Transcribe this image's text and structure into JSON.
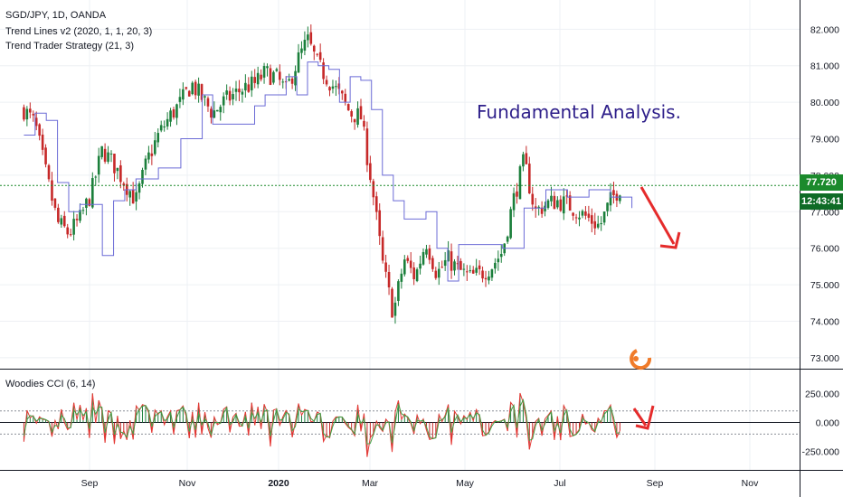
{
  "header": {
    "symbol_line": "SGD/JPY, 1D, OANDA",
    "indicator1": "Trend Lines v2 (2020, 1, 1, 20, 3)",
    "indicator2": "Trend Trader Strategy (21, 3)",
    "oscillator_label": "Woodies CCI (6, 14)"
  },
  "annotation": {
    "text": "Fundamental Analysis."
  },
  "price_tags": {
    "last_price": "77.720",
    "countdown": "12:43:41"
  },
  "colors": {
    "up": "#26a69a",
    "up_dark": "#1b7f3b",
    "down": "#ef5350",
    "down_dark": "#b71c1c",
    "trend": "#6b6bd6",
    "last_line": "#1b8a2c",
    "arrow": "#e52b2b",
    "annot": "#2e1f8a"
  },
  "chart_data": [
    {
      "type": "candlestick",
      "title": "SGD/JPY, 1D, OANDA",
      "y_axis": {
        "ylim": [
          72.7,
          82.8
        ],
        "ticks": [
          "82.000",
          "81.000",
          "80.000",
          "79.000",
          "78.000",
          "77.000",
          "76.000",
          "75.000",
          "74.000",
          "73.000"
        ]
      },
      "x_axis": {
        "tick_labels": [
          "Sep",
          "Nov",
          "2020",
          "Mar",
          "May",
          "Jul",
          "Sep",
          "Nov"
        ]
      },
      "close_path": [
        [
          "2019-07-22",
          79.8
        ],
        [
          "2019-07-29",
          79.4
        ],
        [
          "2019-08-05",
          78.0
        ],
        [
          "2019-08-12",
          76.7
        ],
        [
          "2019-08-19",
          76.4
        ],
        [
          "2019-08-26",
          76.8
        ],
        [
          "2019-09-02",
          77.5
        ],
        [
          "2019-09-09",
          78.7
        ],
        [
          "2019-09-16",
          78.3
        ],
        [
          "2019-09-23",
          77.8
        ],
        [
          "2019-09-30",
          77.3
        ],
        [
          "2019-10-07",
          78.4
        ],
        [
          "2019-10-14",
          79.1
        ],
        [
          "2019-10-21",
          79.6
        ],
        [
          "2019-10-28",
          80.0
        ],
        [
          "2019-11-04",
          80.5
        ],
        [
          "2019-11-11",
          80.1
        ],
        [
          "2019-11-18",
          79.7
        ],
        [
          "2019-11-25",
          80.0
        ],
        [
          "2019-12-02",
          80.2
        ],
        [
          "2019-12-09",
          80.4
        ],
        [
          "2019-12-16",
          80.5
        ],
        [
          "2019-12-23",
          80.8
        ],
        [
          "2019-12-30",
          80.7
        ],
        [
          "2020-01-06",
          80.3
        ],
        [
          "2020-01-13",
          81.1
        ],
        [
          "2020-01-20",
          81.7
        ],
        [
          "2020-01-27",
          81.0
        ],
        [
          "2020-02-03",
          80.6
        ],
        [
          "2020-02-10",
          80.2
        ],
        [
          "2020-02-17",
          79.7
        ],
        [
          "2020-02-24",
          79.6
        ],
        [
          "2020-03-02",
          77.8
        ],
        [
          "2020-03-09",
          75.6
        ],
        [
          "2020-03-16",
          74.2
        ],
        [
          "2020-03-23",
          75.7
        ],
        [
          "2020-03-30",
          75.2
        ],
        [
          "2020-04-06",
          76.2
        ],
        [
          "2020-04-13",
          75.3
        ],
        [
          "2020-04-20",
          75.7
        ],
        [
          "2020-04-27",
          75.4
        ],
        [
          "2020-05-04",
          75.2
        ],
        [
          "2020-05-11",
          75.3
        ],
        [
          "2020-05-18",
          75.5
        ],
        [
          "2020-05-25",
          75.9
        ],
        [
          "2020-06-01",
          77.3
        ],
        [
          "2020-06-08",
          78.4
        ],
        [
          "2020-06-15",
          77.0
        ],
        [
          "2020-06-22",
          77.2
        ],
        [
          "2020-06-29",
          77.3
        ],
        [
          "2020-07-06",
          77.2
        ],
        [
          "2020-07-13",
          77.0
        ],
        [
          "2020-07-20",
          76.8
        ],
        [
          "2020-07-27",
          76.6
        ],
        [
          "2020-08-03",
          77.3
        ],
        [
          "2020-08-10",
          77.72
        ]
      ],
      "trend_line_path": [
        [
          "2019-07-22",
          79.1
        ],
        [
          "2019-07-29",
          79.7
        ],
        [
          "2019-08-05",
          79.5
        ],
        [
          "2019-08-12",
          77.8
        ],
        [
          "2019-08-19",
          77.0
        ],
        [
          "2019-08-26",
          77.2
        ],
        [
          "2019-09-09",
          75.8
        ],
        [
          "2019-09-16",
          77.3
        ],
        [
          "2019-09-23",
          77.6
        ],
        [
          "2019-09-30",
          77.9
        ],
        [
          "2019-10-14",
          78.2
        ],
        [
          "2019-10-28",
          79.0
        ],
        [
          "2019-11-11",
          80.2
        ],
        [
          "2019-11-18",
          79.4
        ],
        [
          "2019-12-02",
          79.4
        ],
        [
          "2019-12-16",
          79.9
        ],
        [
          "2019-12-23",
          80.2
        ],
        [
          "2020-01-06",
          80.7
        ],
        [
          "2020-01-13",
          80.2
        ],
        [
          "2020-01-20",
          81.1
        ],
        [
          "2020-01-27",
          81.0
        ],
        [
          "2020-02-03",
          80.9
        ],
        [
          "2020-02-10",
          80.0
        ],
        [
          "2020-02-17",
          80.7
        ],
        [
          "2020-02-24",
          80.6
        ],
        [
          "2020-03-02",
          79.8
        ],
        [
          "2020-03-09",
          78.0
        ],
        [
          "2020-03-16",
          77.3
        ],
        [
          "2020-03-23",
          76.8
        ],
        [
          "2020-04-06",
          77.0
        ],
        [
          "2020-04-13",
          76.0
        ],
        [
          "2020-04-20",
          75.1
        ],
        [
          "2020-04-27",
          76.1
        ],
        [
          "2020-05-11",
          76.1
        ],
        [
          "2020-05-25",
          76.0
        ],
        [
          "2020-06-08",
          77.1
        ],
        [
          "2020-06-22",
          77.6
        ],
        [
          "2020-07-06",
          77.4
        ],
        [
          "2020-07-20",
          77.6
        ],
        [
          "2020-08-03",
          77.4
        ],
        [
          "2020-08-17",
          77.1
        ]
      ],
      "last_price": 77.72,
      "dotted_line": 77.72
    },
    {
      "type": "line",
      "title": "Woodies CCI (6, 14)",
      "y_axis": {
        "ylim": [
          -410,
          450
        ],
        "ticks": [
          "250.000",
          "0.000",
          "-250.000"
        ]
      },
      "reference_lines": [
        100,
        0,
        -100
      ]
    }
  ]
}
